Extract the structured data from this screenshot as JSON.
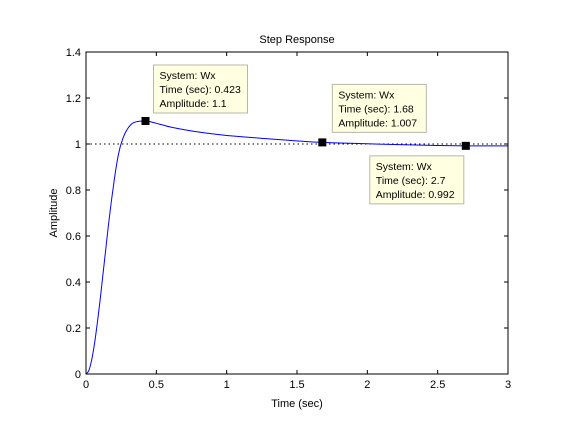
{
  "chart_data": {
    "type": "line",
    "title": "Step Response",
    "xlabel": "Time (sec)",
    "ylabel": "Amplitude",
    "xlim": [
      0,
      3
    ],
    "ylim": [
      0,
      1.4
    ],
    "grid": false,
    "xticks": [
      0,
      0.5,
      1,
      1.5,
      2,
      2.5,
      3
    ],
    "xtick_labels": [
      "0",
      "0.5",
      "1",
      "1.5",
      "2",
      "2.5",
      "3"
    ],
    "yticks": [
      0,
      0.2,
      0.4,
      0.6,
      0.8,
      1.0,
      1.2,
      1.4
    ],
    "ytick_labels": [
      "0",
      "0.2",
      "0.4",
      "0.6",
      "0.8",
      "1",
      "1.2",
      "1.4"
    ],
    "reference_line": {
      "y": 1.0,
      "style": "dotted",
      "color": "#000000"
    },
    "series": [
      {
        "color": "#0000ff",
        "x": [
          0,
          0.02,
          0.04,
          0.06,
          0.08,
          0.1,
          0.12,
          0.14,
          0.16,
          0.18,
          0.2,
          0.22,
          0.24,
          0.26,
          0.28,
          0.3,
          0.32,
          0.34,
          0.36,
          0.38,
          0.4,
          0.423,
          0.45,
          0.5,
          0.55,
          0.6,
          0.7,
          0.8,
          0.9,
          1.0,
          1.2,
          1.4,
          1.68,
          2.0,
          2.3,
          2.7,
          3.0
        ],
        "y": [
          0,
          0.015,
          0.06,
          0.13,
          0.22,
          0.32,
          0.43,
          0.54,
          0.65,
          0.75,
          0.84,
          0.92,
          0.98,
          1.02,
          1.05,
          1.07,
          1.085,
          1.093,
          1.097,
          1.099,
          1.1,
          1.1,
          1.098,
          1.09,
          1.082,
          1.074,
          1.062,
          1.052,
          1.044,
          1.037,
          1.027,
          1.018,
          1.007,
          1.001,
          0.996,
          0.992,
          0.992
        ]
      }
    ],
    "datatips": [
      {
        "x": 0.423,
        "y": 1.1,
        "lines": [
          "System: Wx",
          "Time (sec): 0.423",
          "Amplitude: 1.1"
        ]
      },
      {
        "x": 1.68,
        "y": 1.007,
        "lines": [
          "System: Wx",
          "Time (sec): 1.68",
          "Amplitude: 1.007"
        ]
      },
      {
        "x": 2.7,
        "y": 0.992,
        "lines": [
          "System: Wx",
          "Time (sec): 2.7",
          "Amplitude: 0.992"
        ]
      }
    ]
  }
}
